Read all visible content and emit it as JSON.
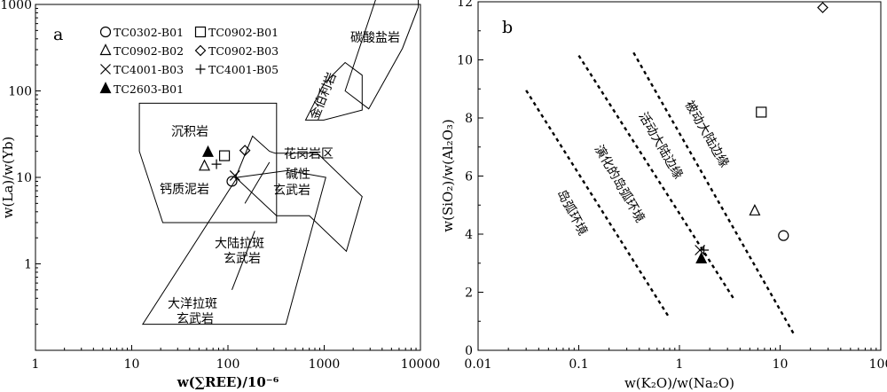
{
  "chart_data": [
    {
      "panel_label": "a",
      "type": "scatter",
      "x_scale": "log",
      "y_scale": "log",
      "xlim": [
        1,
        10000
      ],
      "ylim": [
        0.1,
        1000
      ],
      "x_ticks": [
        "1",
        "10",
        "100",
        "1000",
        "10000"
      ],
      "y_ticks": [
        "1",
        "10",
        "100",
        "1000"
      ],
      "xlabel": "w(∑REE)/10⁻⁶",
      "ylabel": "w(La)/w(Yb)",
      "legend": [
        {
          "marker": "circle",
          "label": "TC0302-B01"
        },
        {
          "marker": "square",
          "label": "TC0902-B01"
        },
        {
          "marker": "triangle",
          "label": "TC0902-B02"
        },
        {
          "marker": "diamond",
          "label": "TC0902-B03"
        },
        {
          "marker": "x",
          "label": "TC4001-B03"
        },
        {
          "marker": "plus",
          "label": "TC4001-B05"
        },
        {
          "marker": "filled-triangle",
          "label": "TC2603-B01"
        }
      ],
      "points": [
        {
          "sample": "TC0302-B01",
          "x": 110,
          "y": 9.0
        },
        {
          "sample": "TC0902-B01",
          "x": 92,
          "y": 17.8
        },
        {
          "sample": "TC0902-B02",
          "x": 57,
          "y": 13.5
        },
        {
          "sample": "TC0902-B03",
          "x": 150,
          "y": 20.5
        },
        {
          "sample": "TC4001-B03",
          "x": 118,
          "y": 10.5
        },
        {
          "sample": "TC4001-B05",
          "x": 76,
          "y": 14.2
        },
        {
          "sample": "TC2603-B01",
          "x": 62,
          "y": 19.5
        }
      ],
      "fields": [
        {
          "label": "碳酸盐岩",
          "polygon": [
            [
              1650,
              100
            ],
            [
              4800,
              3500
            ],
            [
              9500,
              3500
            ],
            [
              9500,
              930
            ],
            [
              6500,
              310
            ],
            [
              2900,
              62
            ]
          ]
        },
        {
          "label": "金伯利岩",
          "polygon": [
            [
              640,
              46
            ],
            [
              990,
              46
            ],
            [
              2480,
              60
            ],
            [
              2480,
              152
            ],
            [
              1650,
              213
            ],
            [
              1000,
              122
            ]
          ]
        },
        {
          "label": "沉积岩|钙质泥岩",
          "polygon": [
            [
              12,
              72
            ],
            [
              320,
              72
            ],
            [
              320,
              3
            ],
            [
              21,
              3
            ],
            [
              12,
              20
            ]
          ]
        },
        {
          "label": "花岗岩区",
          "polygon": [
            [
              180,
              30
            ],
            [
              270,
              20
            ],
            [
              310,
              19
            ],
            [
              850,
              19
            ],
            [
              2480,
              6
            ],
            [
              1700,
              1.4
            ],
            [
              700,
              3.6
            ],
            [
              320,
              3.6
            ],
            [
              120,
              10
            ]
          ]
        },
        {
          "label": "大陆拉斑|玄武岩 / 大洋拉斑|玄武岩",
          "polygon": [
            [
              125,
              10
            ],
            [
              420,
              12
            ],
            [
              1040,
              10
            ],
            [
              400,
              0.2
            ],
            [
              13,
              0.2
            ]
          ]
        }
      ],
      "dividers": [
        {
          "from": [
            270,
            15
          ],
          "to": [
            150,
            5
          ]
        },
        {
          "from": [
            190,
            2.4
          ],
          "to": [
            110,
            0.5
          ]
        }
      ]
    },
    {
      "panel_label": "b",
      "type": "scatter",
      "x_scale": "log",
      "y_scale": "linear",
      "xlim": [
        0.01,
        100
      ],
      "ylim": [
        0,
        12
      ],
      "x_ticks": [
        "0.01",
        "0.1",
        "1",
        "10",
        "100"
      ],
      "y_ticks": [
        "0",
        "2",
        "4",
        "6",
        "8",
        "10",
        "12"
      ],
      "xlabel": "w(K₂O)/w(Na₂O)",
      "ylabel": "w(SiO₂)/w(Al₂O₃)",
      "points": [
        {
          "sample": "TC0302-B01",
          "x": 10.8,
          "y": 3.95
        },
        {
          "sample": "TC0902-B01",
          "x": 6.5,
          "y": 8.2
        },
        {
          "sample": "TC0902-B02",
          "x": 5.6,
          "y": 4.8
        },
        {
          "sample": "TC0902-B03",
          "x": 26.5,
          "y": 11.8
        },
        {
          "sample": "TC4001-B03",
          "x": 1.6,
          "y": 3.45
        },
        {
          "sample": "TC4001-B05",
          "x": 1.75,
          "y": 3.45
        },
        {
          "sample": "TC2603-B01",
          "x": 1.65,
          "y": 3.15
        }
      ],
      "dividers": [
        {
          "from": [
            0.03,
            8.95
          ],
          "to": [
            0.8,
            1.1
          ]
        },
        {
          "from": [
            0.1,
            10.15
          ],
          "to": [
            3.5,
            1.75
          ]
        },
        {
          "from": [
            0.35,
            10.25
          ],
          "to": [
            14,
            0.5
          ]
        }
      ],
      "field_labels": [
        "岛弧环境",
        "演化的岛弧环境",
        "活动大陆边缘",
        "被动大陆边缘"
      ]
    }
  ]
}
